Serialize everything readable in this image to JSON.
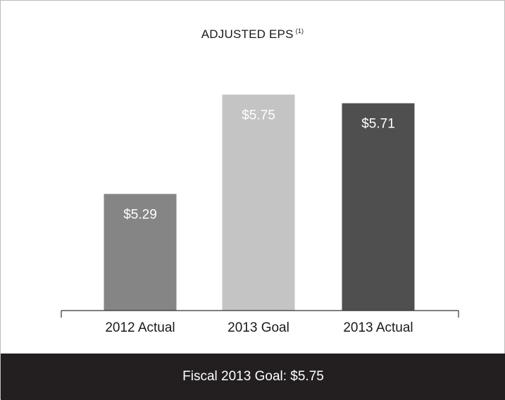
{
  "chart_data": {
    "type": "bar",
    "title": "ADJUSTED EPS",
    "title_footnote": "(1)",
    "categories": [
      "2012 Actual",
      "2013 Goal",
      "2013 Actual"
    ],
    "values": [
      5.29,
      5.75,
      5.71
    ],
    "value_labels": [
      "$5.29",
      "$5.75",
      "$5.71"
    ],
    "colors": [
      "#858585",
      "#c4c4c4",
      "#4f4f4f"
    ],
    "ylim": [
      4.75,
      5.8
    ],
    "grid": false
  },
  "footer": {
    "text": "Fiscal 2013 Goal: $5.75"
  }
}
